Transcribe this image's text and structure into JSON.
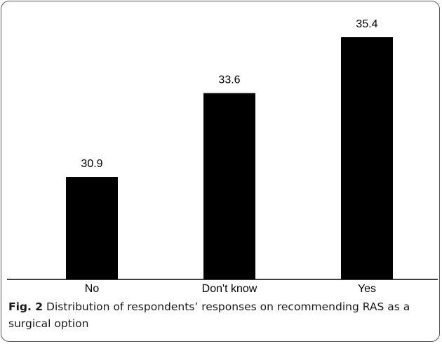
{
  "chart_data": {
    "type": "bar",
    "categories": [
      "No",
      "Don't know",
      "Yes"
    ],
    "values": [
      30.9,
      33.6,
      35.4
    ],
    "value_labels": [
      "30.9",
      "33.6",
      "35.4"
    ],
    "title": "",
    "xlabel": "",
    "ylabel": "",
    "ylim": [
      27.6,
      35.4
    ],
    "grid": false,
    "legend": "none",
    "bar_color": "#000000"
  },
  "caption": {
    "label": "Fig. 2",
    "text": "Distribution of respondents’ responses on recommending RAS as a surgical option"
  }
}
